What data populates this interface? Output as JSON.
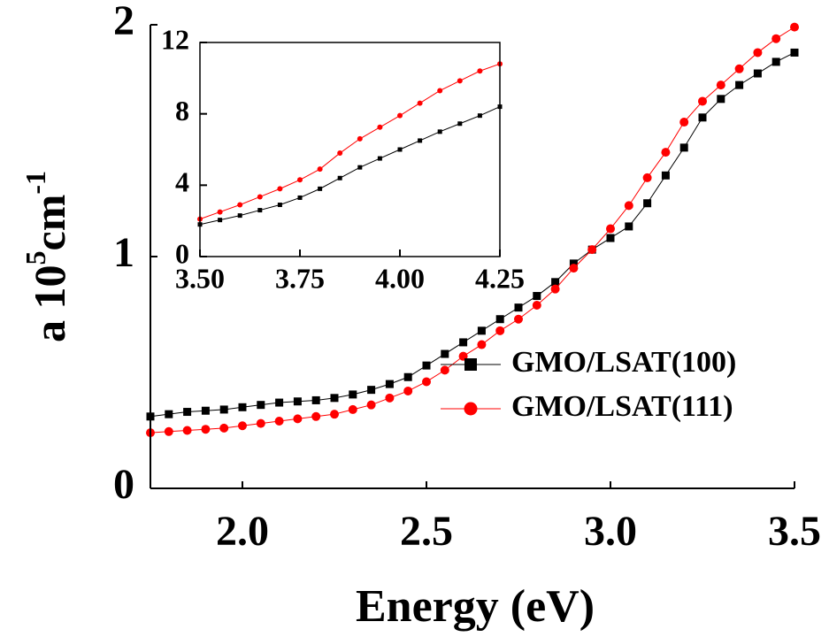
{
  "chart_data": [
    {
      "type": "line",
      "xlabel": "Energy (eV)",
      "ylabel_parts": [
        "a 10",
        "5",
        "cm",
        "-1"
      ],
      "xlim": [
        1.75,
        3.5
      ],
      "ylim": [
        0,
        2
      ],
      "xticks": [
        {
          "value": 2,
          "label": "2.0"
        },
        {
          "value": 2.5,
          "label": "2.5"
        },
        {
          "value": 3,
          "label": "3.0"
        },
        {
          "value": 3.5,
          "label": "3.5"
        }
      ],
      "yticks": [
        0,
        1,
        2
      ],
      "legend": "lower right",
      "x": [
        1.75,
        1.8,
        1.85,
        1.9,
        1.95,
        2.0,
        2.05,
        2.1,
        2.15,
        2.2,
        2.25,
        2.3,
        2.35,
        2.4,
        2.45,
        2.5,
        2.55,
        2.6,
        2.65,
        2.7,
        2.75,
        2.8,
        2.85,
        2.9,
        2.95,
        3.0,
        3.05,
        3.1,
        3.15,
        3.2,
        3.25,
        3.3,
        3.35,
        3.4,
        3.45,
        3.5
      ],
      "series": [
        {
          "name": "GMO/LSAT(100)",
          "color": "#000000",
          "marker": "square",
          "values": [
            0.31,
            0.32,
            0.33,
            0.335,
            0.34,
            0.35,
            0.36,
            0.37,
            0.375,
            0.38,
            0.39,
            0.405,
            0.425,
            0.45,
            0.48,
            0.53,
            0.58,
            0.63,
            0.68,
            0.73,
            0.78,
            0.83,
            0.89,
            0.97,
            1.03,
            1.08,
            1.13,
            1.23,
            1.35,
            1.47,
            1.6,
            1.68,
            1.74,
            1.79,
            1.84,
            1.88
          ]
        },
        {
          "name": "GMO/LSAT(111)",
          "color": "#ff0000",
          "marker": "circle",
          "values": [
            0.24,
            0.245,
            0.25,
            0.255,
            0.26,
            0.27,
            0.28,
            0.29,
            0.3,
            0.31,
            0.32,
            0.34,
            0.36,
            0.39,
            0.42,
            0.46,
            0.51,
            0.57,
            0.62,
            0.68,
            0.73,
            0.79,
            0.86,
            0.95,
            1.03,
            1.12,
            1.22,
            1.34,
            1.45,
            1.58,
            1.67,
            1.74,
            1.81,
            1.88,
            1.94,
            1.99
          ]
        }
      ]
    },
    {
      "type": "line",
      "xlim": [
        3.5,
        4.25
      ],
      "ylim": [
        0,
        12
      ],
      "xticks": [
        {
          "value": 3.5,
          "label": "3.50"
        },
        {
          "value": 3.75,
          "label": "3.75"
        },
        {
          "value": 4,
          "label": "4.00"
        },
        {
          "value": 4.25,
          "label": "4.25"
        }
      ],
      "yticks": [
        0,
        4,
        8,
        12
      ],
      "x": [
        3.5,
        3.55,
        3.6,
        3.65,
        3.7,
        3.75,
        3.8,
        3.85,
        3.9,
        3.95,
        4.0,
        4.05,
        4.1,
        4.15,
        4.2,
        4.25
      ],
      "series": [
        {
          "color": "#000000",
          "marker": "square",
          "values": [
            1.8,
            2.05,
            2.3,
            2.6,
            2.9,
            3.3,
            3.8,
            4.4,
            5.0,
            5.5,
            6.0,
            6.5,
            7.0,
            7.45,
            7.9,
            8.4
          ]
        },
        {
          "color": "#ff0000",
          "marker": "circle",
          "values": [
            2.1,
            2.5,
            2.9,
            3.35,
            3.8,
            4.3,
            4.9,
            5.8,
            6.6,
            7.25,
            7.9,
            8.6,
            9.3,
            9.85,
            10.4,
            10.8
          ]
        }
      ]
    }
  ]
}
